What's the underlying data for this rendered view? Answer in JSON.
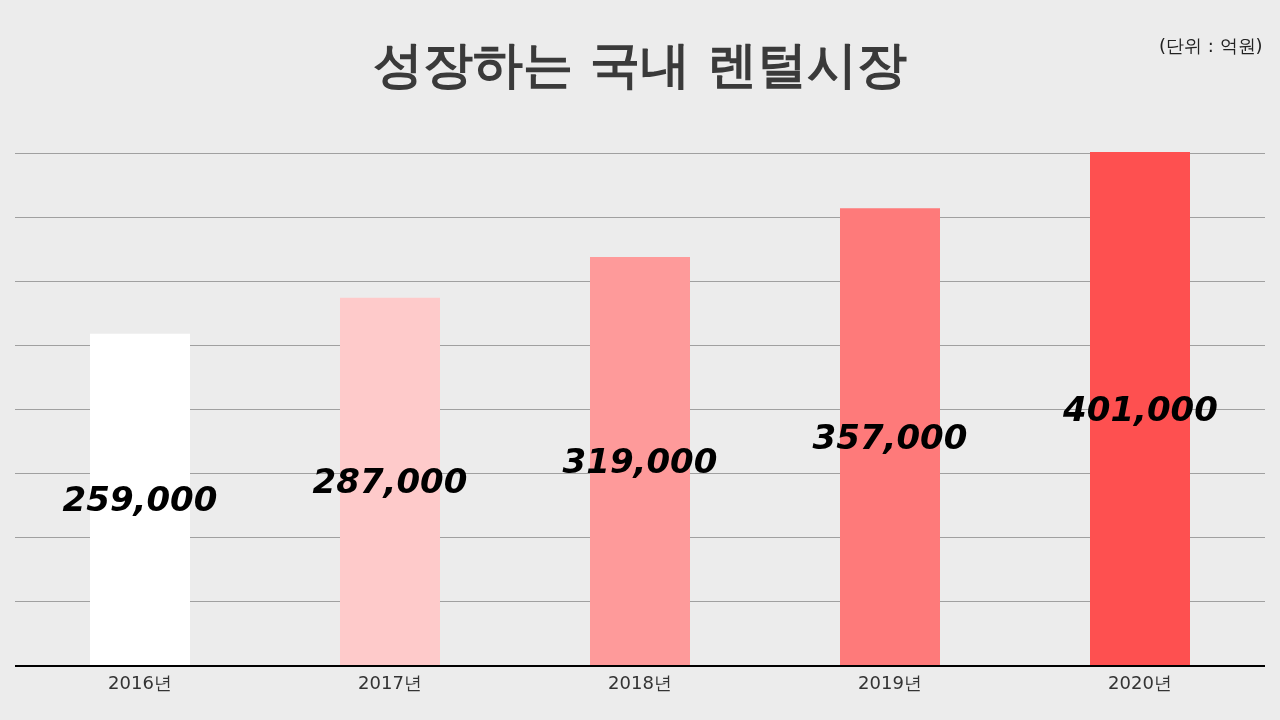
{
  "chart_data": {
    "type": "bar",
    "title": "성장하는 국내 렌털시장",
    "annotations": [
      "(단위 : 억원)"
    ],
    "categories": [
      "2016년",
      "2017년",
      "2018년",
      "2019년",
      "2020년"
    ],
    "values": [
      259000,
      287000,
      319000,
      357000,
      401000
    ],
    "colors": [
      "#ffffff",
      "#fecaca",
      "#fe9a9a",
      "#fe7a7a",
      "#fe5050"
    ],
    "value_labels": [
      "259,000",
      "287,000",
      "319,000",
      "357,000",
      "401,000"
    ],
    "tick_labels": "x",
    "grid": "y"
  }
}
